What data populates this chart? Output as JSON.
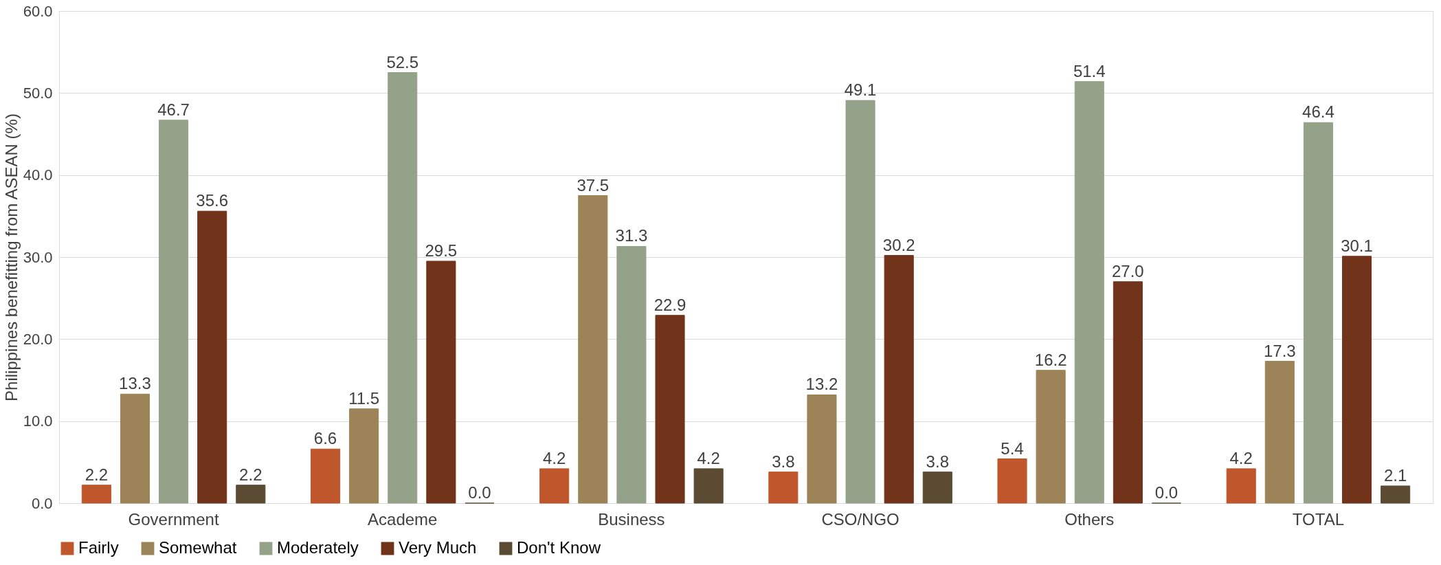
{
  "chart_data": {
    "type": "bar",
    "ylabel": "Philippines benefitting from ASEAN (%)",
    "categories": [
      "Government",
      "Academe",
      "Business",
      "CSO/NGO",
      "Others",
      "TOTAL"
    ],
    "series": [
      {
        "name": "Fairly",
        "color": "#c0562b",
        "values": [
          2.2,
          6.6,
          4.2,
          3.8,
          5.4,
          4.2
        ],
        "value_labels": [
          "2.2",
          "6.6",
          "4.2",
          "3.8",
          "5.4",
          "4.2"
        ]
      },
      {
        "name": "Somewhat",
        "color": "#9c8358",
        "values": [
          13.3,
          11.5,
          37.5,
          13.2,
          16.2,
          17.3
        ],
        "value_labels": [
          "13.3",
          "11.5",
          "37.5",
          "13.2",
          "16.2",
          "17.3"
        ]
      },
      {
        "name": "Moderately",
        "color": "#95a28a",
        "values": [
          46.7,
          52.5,
          31.3,
          49.1,
          51.4,
          46.4
        ],
        "value_labels": [
          "46.7",
          "52.5",
          "31.3",
          "49.1",
          "51.4",
          "46.4"
        ]
      },
      {
        "name": "Very Much",
        "color": "#71341a",
        "values": [
          35.6,
          29.5,
          22.9,
          30.2,
          27.0,
          30.1
        ],
        "value_labels": [
          "35.6",
          "29.5",
          "22.9",
          "30.2",
          "27.0",
          "30.1"
        ]
      },
      {
        "name": "Don't Know",
        "color": "#5b4b33",
        "values": [
          2.2,
          0.0,
          4.2,
          3.8,
          0.0,
          2.1
        ],
        "value_labels": [
          "2.2",
          "0.0",
          "4.2",
          "3.8",
          "0.0",
          "2.1"
        ]
      }
    ],
    "ylim": [
      0,
      60
    ],
    "yticks": [
      {
        "value": 0,
        "label": "0.0"
      },
      {
        "value": 10,
        "label": "10.0"
      },
      {
        "value": 20,
        "label": "20.0"
      },
      {
        "value": 30,
        "label": "30.0"
      },
      {
        "value": 40,
        "label": "40.0"
      },
      {
        "value": 50,
        "label": "50.0"
      },
      {
        "value": 60,
        "label": "60.0"
      }
    ],
    "grid": "y",
    "legend": "bottom"
  }
}
